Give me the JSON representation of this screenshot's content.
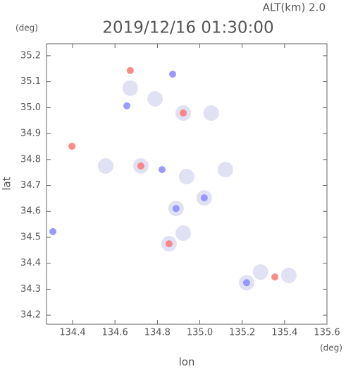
{
  "chart_data": {
    "type": "scatter",
    "title": "ALT(km) 2.0",
    "subtitle": "2019/12/16 01:30:00",
    "x_label": "lon",
    "x_unit": "(deg)",
    "y_label": "lat",
    "y_unit": "(deg)",
    "xlim": [
      134.277,
      135.6
    ],
    "ylim": [
      34.165,
      35.246
    ],
    "xticks": [
      134.4,
      134.6,
      134.8,
      {
        "value": 135,
        "label": "135.0"
      },
      135.2,
      135.4,
      135.6
    ],
    "yticks": [
      34.2,
      34.3,
      34.4,
      34.5,
      34.6,
      34.7,
      34.8,
      34.9,
      {
        "value": 35,
        "label": "35.0"
      },
      35.1,
      35.2
    ],
    "series": [
      {
        "color": "#dcdcf2",
        "x": [
          134.672,
          134.789,
          134.922,
          135.054,
          134.722,
          134.556,
          134.938,
          135.121,
          135.021,
          134.888,
          134.922,
          134.855,
          135.287,
          135.221,
          135.42
        ],
        "values": [
          35.075,
          35.034,
          34.979,
          34.979,
          34.775,
          34.775,
          34.734,
          34.761,
          34.652,
          34.611,
          34.516,
          34.475,
          34.366,
          34.325,
          34.353
        ]
      },
      {
        "color": "#8a8aff",
        "x": [
          134.656,
          134.307,
          134.822,
          134.872,
          135.021,
          135.221,
          134.888
        ],
        "values": [
          35.007,
          34.522,
          34.761,
          35.129,
          34.652,
          34.325,
          34.611
        ]
      },
      {
        "color": "#ff7575",
        "x": [
          134.672,
          134.397,
          134.722,
          135.354,
          134.922,
          134.855
        ],
        "values": [
          35.143,
          34.851,
          34.775,
          34.347,
          34.979,
          34.475
        ]
      }
    ]
  }
}
